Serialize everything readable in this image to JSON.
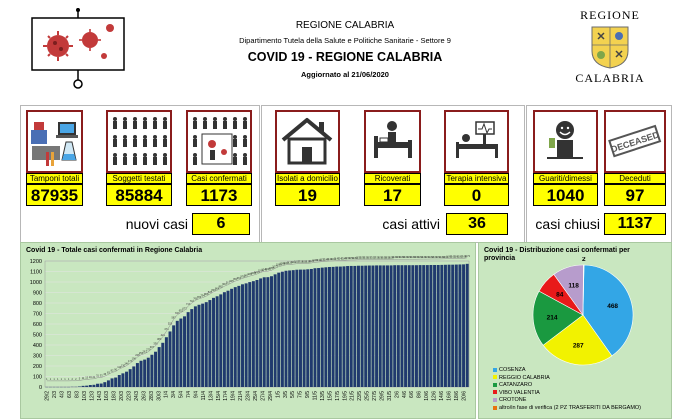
{
  "header": {
    "region": "REGIONE CALABRIA",
    "department": "Dipartimento Tutela della Salute e Politiche Sanitarie - Settore 9",
    "title": "COVID 19 - REGIONE CALABRIA",
    "updated": "Aggiornato al  21/06/2020",
    "logo_top": "REGIONE",
    "logo_bottom": "CALABRIA"
  },
  "stats": [
    {
      "label": "Tamponi totali",
      "value": "87935"
    },
    {
      "label": "Soggetti testati",
      "value": "85884"
    },
    {
      "label": "Casi confermati",
      "value": "1173"
    },
    {
      "label": "Isolati a domicilio",
      "value": "19"
    },
    {
      "label": "Ricoverati",
      "value": "17"
    },
    {
      "label": "Terapia intensiva",
      "value": "0"
    },
    {
      "label": "Guariti/dimessi",
      "value": "1040"
    },
    {
      "label": "Deceduti",
      "value": "97"
    }
  ],
  "summary": {
    "new_label": "nuovi casi",
    "new_value": "6",
    "active_label": "casi attivi",
    "active_value": "36",
    "closed_label": "casi chiusi",
    "closed_value": "1137"
  },
  "deceased_stamp": "DECEASED",
  "chart_data": [
    {
      "type": "bar",
      "title": "Covid 19 - Totale casi confermati in Regione Calabria",
      "ylim": [
        0,
        1200
      ],
      "yticks": [
        0,
        100,
        200,
        300,
        400,
        500,
        600,
        700,
        800,
        900,
        1000,
        1100,
        1200
      ],
      "x_labels": [
        "29/2",
        "2/3",
        "4/3",
        "6/3",
        "8/3",
        "10/3",
        "12/3",
        "14/3",
        "16/3",
        "18/3",
        "20/3",
        "22/3",
        "24/3",
        "26/3",
        "28/3",
        "30/3",
        "1/4",
        "3/4",
        "5/4",
        "7/4",
        "9/4",
        "11/4",
        "13/4",
        "15/4",
        "17/4",
        "19/4",
        "21/4",
        "23/4",
        "25/4",
        "27/4",
        "29/4",
        "1/5",
        "3/5",
        "5/5",
        "7/5",
        "9/5",
        "11/5",
        "13/5",
        "15/5",
        "17/5",
        "19/5",
        "21/5",
        "23/5",
        "25/5",
        "27/5",
        "29/5",
        "31/5",
        "2/6",
        "4/6",
        "6/6",
        "8/6",
        "10/6",
        "12/6",
        "14/6",
        "16/6",
        "18/6",
        "20/6"
      ],
      "values": [
        1,
        1,
        1,
        1,
        1,
        1,
        1,
        2,
        2,
        5,
        11,
        13,
        19,
        21,
        31,
        33,
        46,
        63,
        82,
        90,
        114,
        130,
        146,
        170,
        196,
        228,
        250,
        261,
        279,
        307,
        336,
        380,
        421,
        474,
        529,
        587,
        630,
        652,
        673,
        713,
        742,
        768,
        783,
        794,
        808,
        828,
        849,
        864,
        882,
        903,
        917,
        935,
        951,
        963,
        978,
        987,
        999,
        1008,
        1019,
        1034,
        1045,
        1046,
        1055,
        1073,
        1089,
        1098,
        1107,
        1110,
        1113,
        1117,
        1118,
        1118,
        1121,
        1124,
        1131,
        1133,
        1137,
        1140,
        1143,
        1144,
        1147,
        1147,
        1149,
        1152,
        1153,
        1153,
        1155,
        1155,
        1156,
        1157,
        1157,
        1158,
        1158,
        1158,
        1158,
        1158,
        1160,
        1160,
        1160,
        1160,
        1160,
        1160,
        1160,
        1161,
        1161,
        1161,
        1162,
        1162,
        1162,
        1163,
        1164,
        1165,
        1165,
        1166,
        1167,
        1168,
        1173
      ]
    },
    {
      "type": "pie",
      "title": "Covid 19 - Distribuzione casi confermati per provincia",
      "slices": [
        {
          "name": "COSENZA",
          "value": 468,
          "color": "#33a6e6"
        },
        {
          "name": "REGGIO CALABRIA",
          "value": 287,
          "color": "#f2f200"
        },
        {
          "name": "CATANZARO",
          "value": 214,
          "color": "#1a9940"
        },
        {
          "name": "VIBO VALENTIA",
          "value": 84,
          "color": "#e81a1a"
        },
        {
          "name": "CROTONE",
          "value": 118,
          "color": "#b79ccc"
        },
        {
          "name": "altro/in fase di verifica (2 PZ TRASFERITI DA BERGAMO)",
          "value": 2,
          "color": "#e8720d"
        }
      ]
    }
  ]
}
